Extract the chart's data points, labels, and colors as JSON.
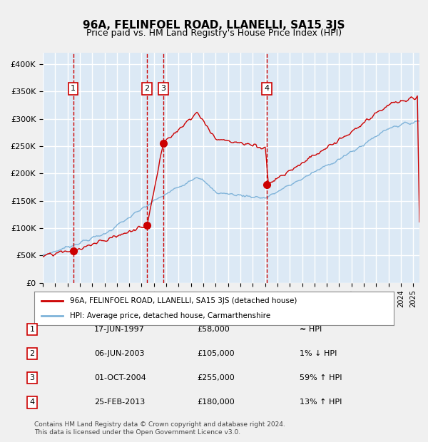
{
  "title": "96A, FELINFOEL ROAD, LLANELLI, SA15 3JS",
  "subtitle": "Price paid vs. HM Land Registry's House Price Index (HPI)",
  "bg_color": "#dce9f5",
  "plot_bg_color": "#dce9f5",
  "grid_color": "#ffffff",
  "hpi_color": "#7fb3d9",
  "price_color": "#cc0000",
  "sale_marker_color": "#cc0000",
  "dashed_line_color": "#cc0000",
  "box_color": "#cc0000",
  "ylim": [
    0,
    420000
  ],
  "yticks": [
    0,
    50000,
    100000,
    150000,
    200000,
    250000,
    300000,
    350000,
    400000
  ],
  "ytick_labels": [
    "£0",
    "£50K",
    "£100K",
    "£150K",
    "£200K",
    "£250K",
    "£300K",
    "£350K",
    "£400K"
  ],
  "sales": [
    {
      "label": "1",
      "date_num": 1997.46,
      "price": 58000
    },
    {
      "label": "2",
      "date_num": 2003.43,
      "price": 105000
    },
    {
      "label": "3",
      "date_num": 2004.75,
      "price": 255000
    },
    {
      "label": "4",
      "date_num": 2013.15,
      "price": 180000
    }
  ],
  "legend_line1": "96A, FELINFOEL ROAD, LLANELLI, SA15 3JS (detached house)",
  "legend_line2": "HPI: Average price, detached house, Carmarthenshire",
  "table": [
    {
      "num": "1",
      "date": "17-JUN-1997",
      "price": "£58,000",
      "rel": "≈ HPI"
    },
    {
      "num": "2",
      "date": "06-JUN-2003",
      "price": "£105,000",
      "rel": "1% ↓ HPI"
    },
    {
      "num": "3",
      "date": "01-OCT-2004",
      "price": "£255,000",
      "rel": "59% ↑ HPI"
    },
    {
      "num": "4",
      "date": "25-FEB-2013",
      "price": "£180,000",
      "rel": "13% ↑ HPI"
    }
  ],
  "footnote": "Contains HM Land Registry data © Crown copyright and database right 2024.\nThis data is licensed under the Open Government Licence v3.0."
}
